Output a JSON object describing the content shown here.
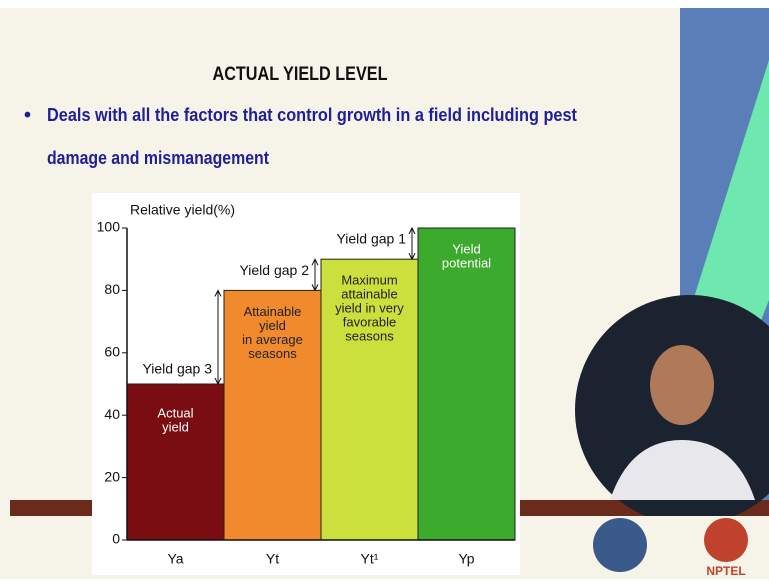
{
  "slide": {
    "title": "ACTUAL YIELD LEVEL",
    "bullet_lines": [
      "Deals with all the factors that control growth in a field including pest",
      "damage and mismanagement"
    ],
    "logo_text": "NPTEL"
  },
  "chart_data": {
    "type": "bar",
    "ylabel": "Relative yield(%)",
    "categories": [
      "Ya",
      "Yt",
      "Yt¹",
      "Yp"
    ],
    "values": [
      50,
      80,
      90,
      100
    ],
    "colors": [
      "#7a0d12",
      "#f08a2c",
      "#cbe03c",
      "#3caa2c"
    ],
    "bar_labels": [
      [
        "Actual",
        "yield"
      ],
      [
        "Attainable",
        "yield",
        "in average",
        "seasons"
      ],
      [
        "Maximum",
        "attainable",
        "yield in very",
        "favorable",
        "seasons"
      ],
      [
        "Yield",
        "potential"
      ]
    ],
    "gap_labels": [
      "Yield gap 3",
      "Yield gap 2",
      "Yield gap 1"
    ],
    "ylim": [
      0,
      100
    ],
    "yticks": [
      0,
      20,
      40,
      60,
      80,
      100
    ]
  }
}
